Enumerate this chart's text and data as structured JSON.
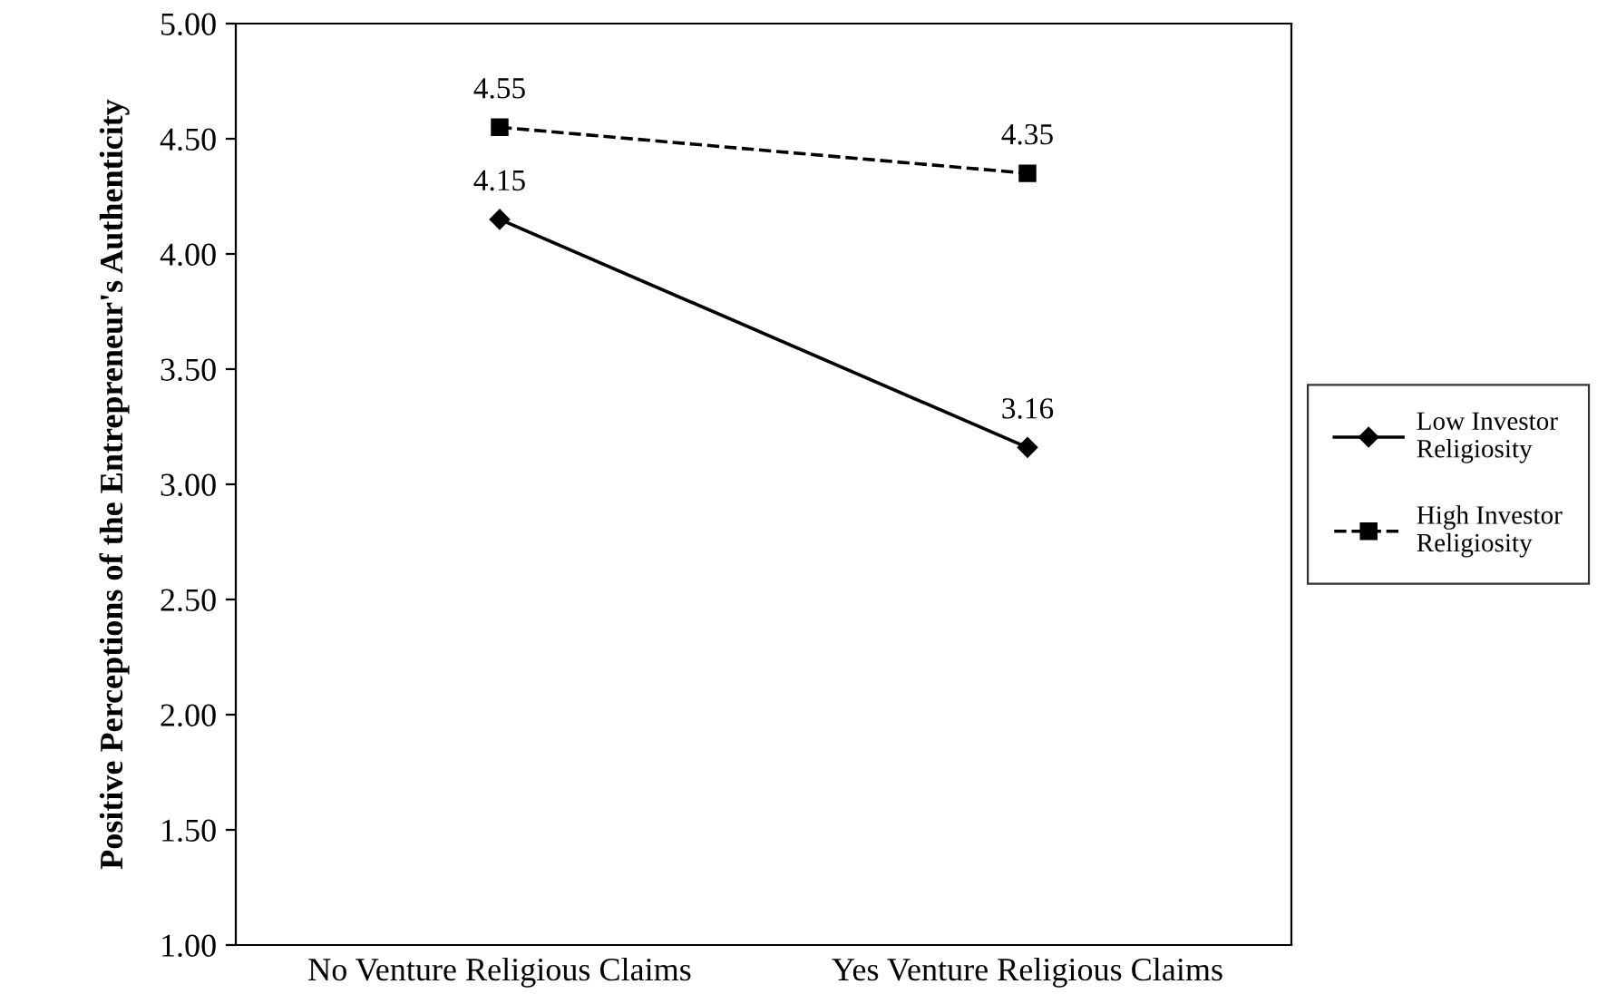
{
  "chart_data": {
    "type": "line",
    "ylabel": "Positive Perceptions of the Entrepreneur's Authenticity",
    "categories": [
      "No Venture Religious Claims",
      "Yes Venture Religious Claims"
    ],
    "series": [
      {
        "name": "Low Investor\nReligiosity",
        "color": "#000000",
        "values": [
          4.15,
          3.16
        ],
        "marker": "diamond",
        "line_style": "solid"
      },
      {
        "name": "High Investor\nReligiosity",
        "color": "#000000",
        "values": [
          4.55,
          4.35
        ],
        "marker": "square",
        "line_style": "dashed"
      }
    ],
    "ylim": [
      1.0,
      5.0
    ],
    "yticks": [
      {
        "value": 1.0,
        "label": "1.00"
      },
      {
        "value": 1.5,
        "label": "1.50"
      },
      {
        "value": 2.0,
        "label": "2.00"
      },
      {
        "value": 2.5,
        "label": "2.50"
      },
      {
        "value": 3.0,
        "label": "3.00"
      },
      {
        "value": 3.5,
        "label": "3.50"
      },
      {
        "value": 4.0,
        "label": "4.00"
      },
      {
        "value": 4.5,
        "label": "4.50"
      },
      {
        "value": 5.0,
        "label": "5.00"
      }
    ],
    "data_labels": true,
    "grid": false,
    "legend": "right"
  }
}
